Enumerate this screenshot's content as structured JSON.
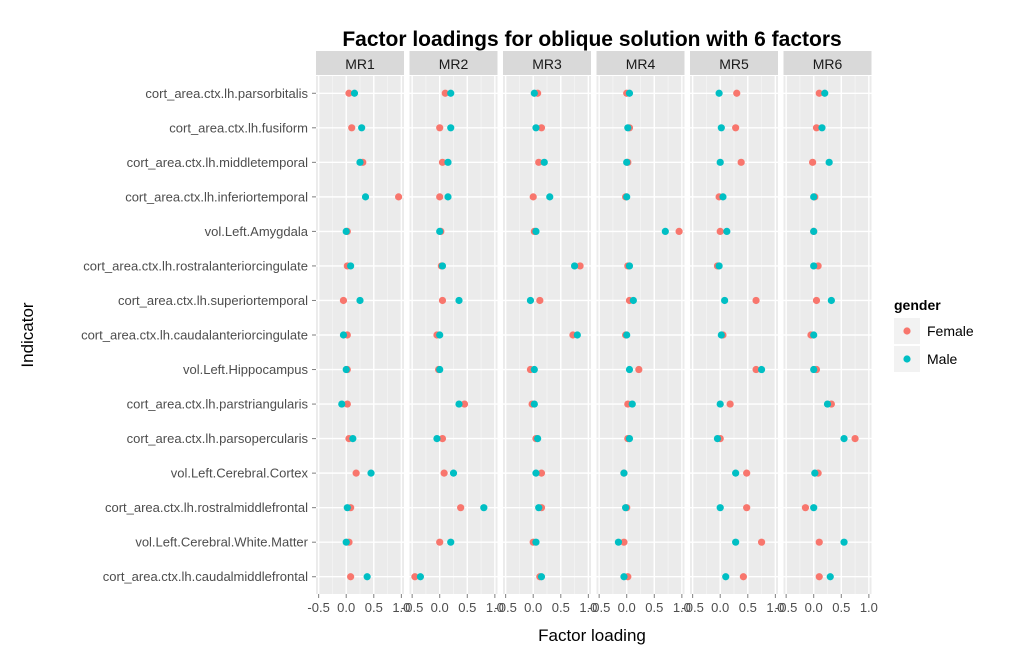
{
  "chart_data": {
    "type": "scatter",
    "title": "Factor loadings for oblique solution with 6 factors",
    "xlabel": "Factor loading",
    "ylabel": "Indicator",
    "xlim": [
      -0.5,
      1.0
    ],
    "xticks": [
      -0.5,
      0.0,
      0.5,
      1.0
    ],
    "xtick_labels": [
      "-0.5",
      "0.0",
      "0.5",
      "1.0"
    ],
    "grid": true,
    "legend": {
      "title": "gender",
      "placement": "right"
    },
    "colors": {
      "Female": "#F8766D",
      "Male": "#00BFC4",
      "panel_bg": "#EBEBEB",
      "strip_bg": "#D9D9D9",
      "text_grey": "#4D4D4D"
    },
    "facets": [
      "MR1",
      "MR2",
      "MR3",
      "MR4",
      "MR5",
      "MR6"
    ],
    "indicators": [
      "cort_area.ctx.lh.parsorbitalis",
      "cort_area.ctx.lh.fusiform",
      "cort_area.ctx.lh.middletemporal",
      "cort_area.ctx.lh.inferiortemporal",
      "vol.Left.Amygdala",
      "cort_area.ctx.lh.rostralanteriorcingulate",
      "cort_area.ctx.lh.superiortemporal",
      "cort_area.ctx.lh.caudalanteriorcingulate",
      "vol.Left.Hippocampus",
      "cort_area.ctx.lh.parstriangularis",
      "cort_area.ctx.lh.parsopercularis",
      "vol.Left.Cerebral.Cortex",
      "cort_area.ctx.lh.rostralmiddlefrontal",
      "vol.Left.Cerebral.White.Matter",
      "cort_area.ctx.lh.caudalmiddlefrontal"
    ],
    "series": [
      {
        "name": "Female",
        "values": [
          [
            0.05,
            0.1,
            0.08,
            0.0,
            0.3,
            0.1
          ],
          [
            0.1,
            0.0,
            0.15,
            0.05,
            0.28,
            0.05
          ],
          [
            0.3,
            0.05,
            0.1,
            0.02,
            0.38,
            -0.02
          ],
          [
            0.95,
            0.0,
            0.0,
            -0.02,
            -0.02,
            0.02
          ],
          [
            0.02,
            0.02,
            0.02,
            0.95,
            0.0,
            0.0
          ],
          [
            0.02,
            0.03,
            0.85,
            0.02,
            -0.05,
            0.08
          ],
          [
            -0.05,
            0.05,
            0.12,
            0.05,
            0.65,
            0.05
          ],
          [
            0.02,
            -0.05,
            0.72,
            -0.02,
            0.05,
            -0.05
          ],
          [
            0.02,
            -0.02,
            -0.05,
            0.22,
            0.65,
            0.05
          ],
          [
            0.02,
            0.45,
            -0.02,
            0.02,
            0.18,
            0.32
          ],
          [
            0.05,
            0.05,
            0.05,
            0.02,
            0.0,
            0.75
          ],
          [
            0.18,
            0.08,
            0.15,
            -0.05,
            0.48,
            0.08
          ],
          [
            0.08,
            0.38,
            0.15,
            0.0,
            0.48,
            -0.15
          ],
          [
            0.05,
            0.0,
            0.0,
            -0.05,
            0.75,
            0.1
          ],
          [
            0.08,
            -0.45,
            0.12,
            0.02,
            0.42,
            0.1
          ]
        ]
      },
      {
        "name": "Male",
        "values": [
          [
            0.15,
            0.2,
            0.02,
            0.05,
            -0.02,
            0.2
          ],
          [
            0.28,
            0.2,
            0.05,
            0.02,
            0.02,
            0.15
          ],
          [
            0.25,
            0.15,
            0.2,
            0.0,
            0.0,
            0.28
          ],
          [
            0.35,
            0.15,
            0.3,
            0.0,
            0.05,
            0.0
          ],
          [
            0.0,
            0.0,
            0.05,
            0.7,
            0.12,
            0.0
          ],
          [
            0.08,
            0.05,
            0.75,
            0.05,
            -0.02,
            0.0
          ],
          [
            0.25,
            0.35,
            -0.05,
            0.12,
            0.08,
            0.32
          ],
          [
            -0.05,
            0.0,
            0.8,
            0.0,
            0.02,
            0.0
          ],
          [
            0.0,
            0.0,
            0.02,
            0.05,
            0.75,
            0.0
          ],
          [
            -0.08,
            0.35,
            0.02,
            0.1,
            0.0,
            0.25
          ],
          [
            0.12,
            -0.05,
            0.08,
            0.05,
            -0.05,
            0.55
          ],
          [
            0.45,
            0.25,
            0.05,
            -0.05,
            0.28,
            0.02
          ],
          [
            0.02,
            0.8,
            0.1,
            -0.02,
            0.0,
            0.0
          ],
          [
            0.0,
            0.2,
            0.05,
            -0.15,
            0.28,
            0.55
          ],
          [
            0.38,
            -0.35,
            0.15,
            -0.05,
            0.1,
            0.3
          ]
        ]
      }
    ]
  }
}
